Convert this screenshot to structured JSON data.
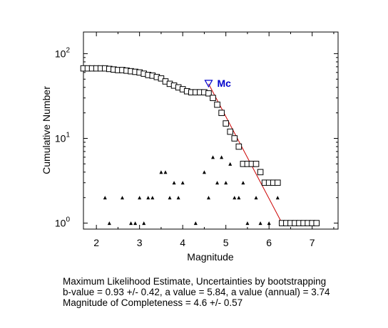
{
  "chart_data": {
    "type": "scatter",
    "xlabel": "Magnitude",
    "ylabel": "Cumulative Number",
    "xlim": [
      1.7,
      7.6
    ],
    "ylim": [
      0.85,
      180
    ],
    "yscale": "log",
    "xticks": [
      2,
      3,
      4,
      5,
      6,
      7
    ],
    "yticks": [
      {
        "value": 1,
        "base": "10",
        "exp": "0"
      },
      {
        "value": 10,
        "base": "10",
        "exp": "1"
      },
      {
        "value": 100,
        "base": "10",
        "exp": "2"
      }
    ],
    "series": [
      {
        "marker": "square",
        "color": "#000000",
        "x": [
          1.7,
          1.8,
          1.9,
          2.0,
          2.1,
          2.2,
          2.3,
          2.4,
          2.5,
          2.6,
          2.7,
          2.8,
          2.9,
          3.0,
          3.1,
          3.2,
          3.3,
          3.4,
          3.5,
          3.6,
          3.7,
          3.8,
          3.9,
          4.0,
          4.1,
          4.2,
          4.3,
          4.4,
          4.5,
          4.6,
          4.7,
          4.8,
          4.9,
          5.0,
          5.1,
          5.2,
          5.3,
          5.4,
          5.5,
          5.6,
          5.7,
          5.8,
          5.9,
          6.0,
          6.1,
          6.2,
          6.3,
          6.4,
          6.5,
          6.6,
          6.7,
          6.8,
          6.9,
          7.0,
          7.1
        ],
        "y": [
          67,
          67,
          67,
          67,
          67,
          67,
          66,
          65,
          64,
          64,
          63,
          62,
          61,
          60,
          58,
          56,
          55,
          53,
          51,
          47,
          44,
          42,
          40,
          38,
          36,
          35,
          35,
          35,
          35,
          34,
          30,
          25,
          20,
          15,
          12,
          10,
          8,
          5,
          5,
          5,
          5,
          4,
          3,
          3,
          3,
          3,
          1,
          1,
          1,
          1,
          1,
          1,
          1,
          1,
          1
        ]
      },
      {
        "marker": "triangle",
        "color": "#000000",
        "x": [
          2.2,
          2.3,
          2.6,
          2.8,
          2.9,
          3.0,
          3.1,
          3.2,
          3.3,
          3.5,
          3.6,
          3.7,
          3.8,
          3.9,
          4.0,
          4.3,
          4.5,
          4.6,
          4.7,
          4.8,
          4.9,
          5.0,
          5.1,
          5.2,
          5.3,
          5.4,
          5.5,
          5.7,
          5.8,
          6.0,
          6.2
        ],
        "y": [
          2,
          1,
          2,
          1,
          1,
          2,
          1,
          2,
          2,
          4,
          4,
          2,
          3,
          2,
          3,
          1,
          4,
          2,
          6,
          3,
          6,
          3,
          5,
          2,
          2,
          3,
          1,
          2,
          1,
          1,
          2
        ]
      },
      {
        "marker": "line",
        "color": "#cc0000",
        "x": [
          4.6,
          6.3
        ],
        "y": [
          44,
          1
        ]
      }
    ],
    "annotations": [
      {
        "text": "Mc",
        "marker": "triangle-down",
        "color": "#0000cc",
        "x": 4.6,
        "y": 44
      }
    ],
    "grid": false,
    "legend": "none"
  },
  "caption": {
    "line1": "Maximum Likelihood Estimate, Uncertainties by bootstrapping",
    "line2": "b-value = 0.93 +/- 0.42,  a value = 5.84,  a value (annual) = 3.74",
    "line3": "Magnitude of Completeness = 4.6 +/- 0.57"
  },
  "colors": {
    "squares": "#000000",
    "triangles": "#000000",
    "fit_line": "#cc0000",
    "mc_marker": "#0000cc"
  }
}
